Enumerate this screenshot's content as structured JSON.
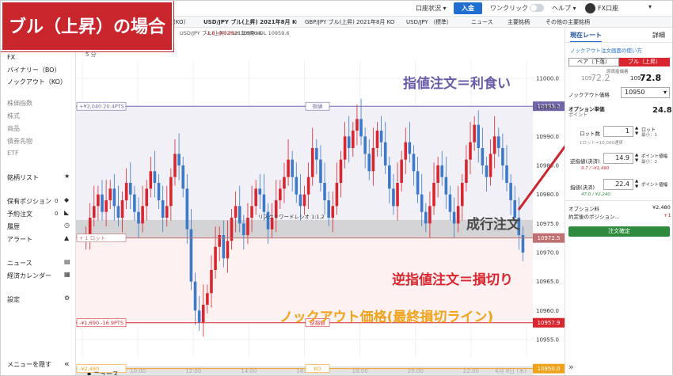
{
  "title_badge": "ブル（上昇）の場合",
  "topbar": {
    "account_status": "口座状況 ▾",
    "deposit": "入金",
    "one_click": "ワンクリック",
    "help": "ヘルプ ▾",
    "user": "FX口座",
    "caret": "▾"
  },
  "tabs": [
    {
      "label": "(KO)"
    },
    {
      "label": "USD/JPY ブル(上昇) 2021年8月 KO"
    },
    {
      "label": "GBP/JPY ブル(上昇) 2021年8月 KO"
    },
    {
      "label": "USD/JPY （標準）"
    },
    {
      "label": "ニュース"
    },
    {
      "label": "主要銘柄"
    },
    {
      "label": "その他の主要銘柄"
    }
  ],
  "info_row": {
    "name": "USD/JPY ブル(上昇) 2021年8月 KO",
    "change": "-1.8  -0.02%",
    "hl": "H 10996.6  L 10959.6"
  },
  "sidebar": {
    "items": [
      {
        "label": "FX"
      },
      {
        "label": "バイナリー（BO）"
      },
      {
        "label": "ノックアウト（KO）"
      },
      {
        "label": "株価指数"
      },
      {
        "label": "株式"
      },
      {
        "label": "商品"
      },
      {
        "label": "債券先物"
      },
      {
        "label": "ETF"
      },
      {
        "label": "銘柄リスト"
      },
      {
        "label": "保有ポジション"
      },
      {
        "label": "予約注文"
      },
      {
        "label": "履歴"
      },
      {
        "label": "アラート"
      },
      {
        "label": "ニュース"
      },
      {
        "label": "経済カレンダー"
      },
      {
        "label": "設定"
      },
      {
        "label": "メニューを隠す"
      }
    ],
    "positions_count": "0",
    "orders_count": "0",
    "collapse_icon": "«"
  },
  "chart": {
    "timeframe": "5 分",
    "price_ticks": [
      "11000.0",
      "10995.0",
      "10990.0",
      "10985.0",
      "10980.0",
      "10975.0",
      "10970.0",
      "10965.0",
      "10960.0",
      "10955.0"
    ],
    "time_ticks": [
      "4月 7日 (水)",
      "10:00",
      "12:00",
      "14:00",
      "16:00",
      "18:00",
      "20:00",
      "22:00",
      "4月 8日 (木)"
    ],
    "limit_line": {
      "label": "+¥2,040  20.4PTS",
      "tag": "指値",
      "price": "10995.2"
    },
    "entry_line": {
      "label": "+ 1 ロット",
      "ratio": "リスクリワードレシオ 1:1.2",
      "price": "10972.5"
    },
    "stop_line": {
      "label": "-¥1,690  -16.9PTS",
      "tag": "逆指値",
      "price": "10957.9"
    },
    "ko_line": {
      "label": "-¥2,480",
      "tag": "KO",
      "price": "10950.0"
    },
    "footer_stats": "-0.5   -0.00%   高値 10994.3   安値 10957.9   2021 年 4 月 7 日 (水) 5:45 - 2021 年 4 月 8 日 (木) 0:55",
    "footer_note": "チャートデータは株価レートです",
    "bottom_tab": "ニュース"
  },
  "annotations": {
    "limit": "指値注文＝利食い",
    "market": "成行注文",
    "stop": "逆指値注文＝損切り",
    "ko": "ノックアウト価格(最終損切ライン)"
  },
  "panel": {
    "tab_rate": "現在レート",
    "tab_detail": "詳細",
    "help_link": "ノックアウト注文画面の使い方",
    "pair_bear": "ベア（下落）",
    "pair_bull": "ブル（上昇）",
    "underlying_label": "原資産価格",
    "bear_price_small": "109",
    "bear_price_big": "72.2",
    "bear_price_sup": "↓",
    "bull_price_small": "109",
    "bull_price_big": "72.8",
    "bull_price_sup": "↓",
    "ko_price_label": "ノックアウト価格",
    "ko_price_value": "10950",
    "option_unit_label": "オプション単価",
    "option_unit_sub": "ポイント",
    "option_unit_value": "24.8",
    "lot_label": "ロット数",
    "lot_value": "1",
    "lot_unit": "ロット",
    "lot_min": "最小：1",
    "lot_note": "1ロット=10,000通貨",
    "limit_label": "逆指値(決済)",
    "limit_value": "14.9",
    "limit_unit": "ポイント値幅",
    "limit_min": "最小：2",
    "limit_sub": "9.7 / -¥1,490",
    "profit_label": "指値(決済)",
    "profit_value": "22.4",
    "profit_unit": "ポイント値幅",
    "profit_sub": "47.0 / ¥2,240",
    "option_fee_label": "オプション料",
    "option_fee_value": "¥2,480",
    "after_pos_label": "約定後のポジション...",
    "after_pos_value": "+1",
    "confirm": "注文確定",
    "expand_icon": "»"
  },
  "colors": {
    "badge_red": "#c9252c",
    "bull_red": "#d9262e",
    "bear_blue": "#3c79c8",
    "limit_purple": "#7264a8",
    "stop_red": "#d9262e",
    "ko_orange": "#f0a31a",
    "confirm_green": "#2e8b3d"
  },
  "chart_data": {
    "type": "candlestick",
    "xlabel": "",
    "ylabel": "",
    "ylim": [
      10952,
      11003
    ],
    "x_ticks": [
      "4月 7日 (水)",
      "10:00",
      "12:00",
      "14:00",
      "16:00",
      "18:00",
      "20:00",
      "22:00",
      "4月 8日 (木)"
    ],
    "levels": {
      "limit": 10995.2,
      "entry": 10972.5,
      "stop": 10957.9,
      "ko": 10950.0
    },
    "close_series": [
      10973,
      10976,
      10978,
      10980,
      10977,
      10979,
      10981,
      10978,
      10976,
      10979,
      10982,
      10980,
      10977,
      10975,
      10978,
      10981,
      10984,
      10982,
      10979,
      10976,
      10978,
      10983,
      10987,
      10985,
      10981,
      10974,
      10965,
      10960,
      10958,
      10961,
      10963,
      10967,
      10971,
      10973,
      10969,
      10972,
      10976,
      10978,
      10975,
      10973,
      10976,
      10978,
      10981,
      10980,
      10977,
      10974,
      10976,
      10979,
      10981,
      10983,
      10986,
      10983,
      10980,
      10978,
      10980,
      10983,
      10988,
      10986,
      10982,
      10979,
      10976,
      10978,
      10982,
      10986,
      10990,
      10988,
      10991,
      10993,
      10990,
      10987,
      10984,
      10988,
      10991,
      10989,
      10985,
      10981,
      10978,
      10982,
      10986,
      10989,
      10987,
      10984,
      10980,
      10977,
      10975,
      10978,
      10982,
      10985,
      10983,
      10980,
      10977,
      10975,
      10978,
      10982,
      10986,
      10989,
      10992,
      10988,
      10985,
      10983,
      10987,
      10990,
      10988,
      10985,
      10982,
      10979,
      10976,
      10973,
      10970
    ]
  }
}
